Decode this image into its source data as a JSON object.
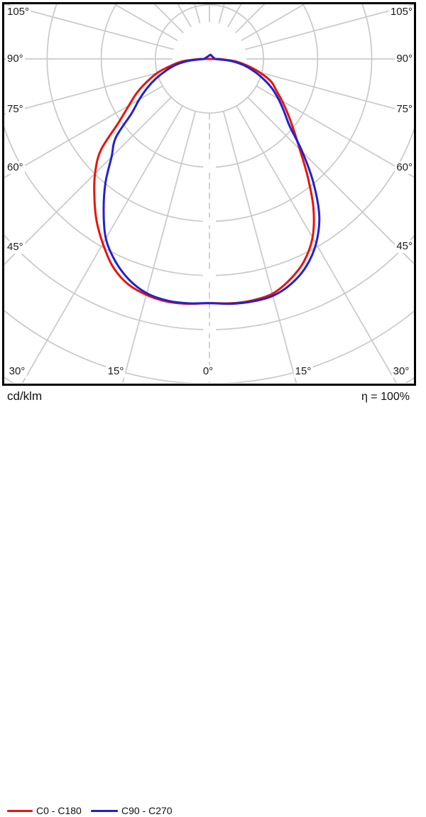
{
  "diagram": {
    "unit_label": "cd/klm",
    "efficiency_label": "η = 100%",
    "left_labels": [
      "105°",
      "90°",
      "75°",
      "60°",
      "45°"
    ],
    "right_labels": [
      "105°",
      "90°",
      "75°",
      "60°",
      "45°"
    ],
    "bottom_labels": [
      "30°",
      "15°",
      "0°",
      "15°",
      "30°"
    ],
    "legend": [
      {
        "label": "C0 - C180",
        "color": "#e8140c"
      },
      {
        "label": "C90 - C270",
        "color": "#2222cf"
      }
    ],
    "grid_color": "#c9c9c9",
    "frame_color": "#000000"
  },
  "chart_data": {
    "type": "line",
    "subtype": "polar_luminous_intensity_distribution",
    "radial_axis_label": "cd/klm",
    "efficiency": "η = 100%",
    "gamma_tick_labels_deg": [
      0,
      15,
      30,
      45,
      60,
      75,
      90,
      105
    ],
    "gamma_grid_step_deg": 15,
    "radial_rings": 7,
    "radius_units": "grid_rings (ring spacing = 1; no numeric radial scale printed on chart)",
    "grid": "polar, circles + 15° spokes, dashed 0° axis",
    "legend_position": "bottom-left",
    "series": [
      {
        "name": "C0 - C180",
        "color": "#e8140c",
        "origin_spike": false,
        "points_gamma_deg_vs_rings": [
          [
            90,
            0.18
          ],
          [
            85,
            0.5
          ],
          [
            80,
            0.73
          ],
          [
            75,
            1.0
          ],
          [
            70,
            1.23
          ],
          [
            65,
            1.48
          ],
          [
            60,
            1.72
          ],
          [
            55,
            2.05
          ],
          [
            50,
            2.62
          ],
          [
            45,
            2.99
          ],
          [
            40,
            3.31
          ],
          [
            35,
            3.64
          ],
          [
            30,
            3.94
          ],
          [
            25,
            4.23
          ],
          [
            20,
            4.42
          ],
          [
            15,
            4.51
          ],
          [
            10,
            4.55
          ],
          [
            5,
            4.54
          ],
          [
            0,
            4.51
          ],
          [
            -5,
            4.53
          ],
          [
            -10,
            4.53
          ],
          [
            -15,
            4.49
          ],
          [
            -20,
            4.34
          ],
          [
            -25,
            4.13
          ],
          [
            -30,
            3.81
          ],
          [
            -35,
            3.35
          ],
          [
            -40,
            2.82
          ],
          [
            -45,
            2.36
          ],
          [
            -50,
            2.03
          ],
          [
            -55,
            1.77
          ],
          [
            -60,
            1.55
          ],
          [
            -65,
            1.36
          ],
          [
            -70,
            1.21
          ],
          [
            -75,
            0.96
          ],
          [
            -80,
            0.71
          ],
          [
            -85,
            0.47
          ],
          [
            -90,
            0.18
          ]
        ]
      },
      {
        "name": "C90 - C270",
        "color": "#2222cf",
        "origin_spike": true,
        "points_gamma_deg_vs_rings": [
          [
            90,
            0.1
          ],
          [
            85,
            0.39
          ],
          [
            80,
            0.63
          ],
          [
            75,
            0.83
          ],
          [
            70,
            1.05
          ],
          [
            65,
            1.27
          ],
          [
            60,
            1.5
          ],
          [
            55,
            1.76
          ],
          [
            50,
            2.26
          ],
          [
            45,
            2.56
          ],
          [
            40,
            2.99
          ],
          [
            35,
            3.41
          ],
          [
            30,
            3.83
          ],
          [
            25,
            4.12
          ],
          [
            20,
            4.34
          ],
          [
            15,
            4.48
          ],
          [
            10,
            4.53
          ],
          [
            5,
            4.53
          ],
          [
            0,
            4.51
          ],
          [
            -5,
            4.54
          ],
          [
            -10,
            4.55
          ],
          [
            -15,
            4.53
          ],
          [
            -20,
            4.42
          ],
          [
            -25,
            4.23
          ],
          [
            -30,
            3.94
          ],
          [
            -35,
            3.54
          ],
          [
            -40,
            2.99
          ],
          [
            -45,
            2.43
          ],
          [
            -50,
            1.94
          ],
          [
            -55,
            1.68
          ],
          [
            -60,
            1.47
          ],
          [
            -65,
            1.27
          ],
          [
            -70,
            1.05
          ],
          [
            -75,
            0.84
          ],
          [
            -80,
            0.63
          ],
          [
            -85,
            0.39
          ],
          [
            -90,
            0.1
          ]
        ]
      }
    ]
  }
}
